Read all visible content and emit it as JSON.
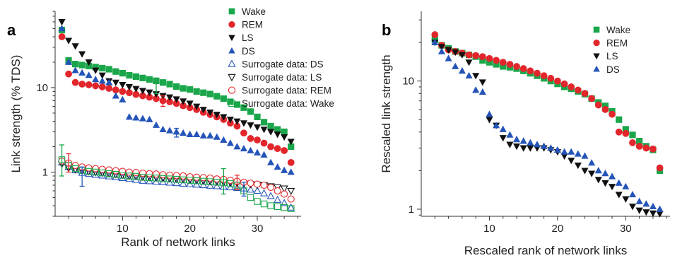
{
  "colors": {
    "wake": "#1aa64a",
    "rem": "#e2262b",
    "ls": "#111111",
    "ds": "#2454b8"
  },
  "chart_data": [
    {
      "panel_label": "a",
      "type": "scatter",
      "xlabel": "Rank of network links",
      "ylabel": "Link strength (% TDS)",
      "xscale": "linear",
      "yscale": "log",
      "xlim": [
        0,
        36.5
      ],
      "ylim": [
        0.3,
        80
      ],
      "xticks": [
        10,
        20,
        30
      ],
      "yticks": [
        {
          "value": 1,
          "label": "1"
        },
        {
          "value": 10,
          "label": "10"
        }
      ],
      "legend_position": "top-right",
      "series": [
        {
          "name": "Wake",
          "key": "wake",
          "marker": "square",
          "filled": true,
          "x": [
            1,
            2,
            3,
            4,
            5,
            6,
            7,
            8,
            9,
            10,
            11,
            12,
            13,
            14,
            15,
            16,
            17,
            18,
            19,
            20,
            21,
            22,
            23,
            24,
            25,
            26,
            27,
            28,
            29,
            30,
            31,
            32,
            33,
            34,
            35
          ],
          "y": [
            48,
            21,
            19,
            18.5,
            18,
            17.5,
            17,
            16.5,
            15.5,
            14.8,
            14,
            13.5,
            13,
            12.5,
            12,
            11.5,
            11,
            10.3,
            9.8,
            9.5,
            9,
            8.7,
            8.4,
            7.9,
            7.4,
            6.8,
            6.3,
            5.8,
            5.2,
            4.5,
            3.9,
            3.5,
            3.2,
            3.0,
            2.0
          ]
        },
        {
          "name": "REM",
          "key": "rem",
          "marker": "circle",
          "filled": true,
          "x": [
            1,
            2,
            3,
            4,
            5,
            6,
            7,
            8,
            9,
            10,
            11,
            12,
            13,
            14,
            15,
            16,
            17,
            18,
            19,
            20,
            21,
            22,
            23,
            24,
            25,
            26,
            27,
            28,
            29,
            30,
            31,
            32,
            33,
            34,
            35
          ],
          "y": [
            40,
            14.5,
            11.5,
            11,
            10.8,
            10.5,
            10.2,
            9.8,
            9.4,
            9.0,
            8.7,
            8.3,
            8.0,
            7.7,
            7.4,
            7.0,
            6.8,
            6.5,
            6.1,
            5.8,
            5.5,
            5.1,
            4.8,
            4.5,
            4.2,
            3.8,
            3.5,
            2.9,
            2.5,
            2.4,
            2.2,
            2.0,
            1.9,
            1.8,
            1.3
          ]
        },
        {
          "name": "LS",
          "key": "ls",
          "marker": "triangle-down",
          "filled": true,
          "x": [
            1,
            2,
            3,
            4,
            5,
            6,
            7,
            8,
            9,
            10,
            11,
            12,
            13,
            14,
            15,
            16,
            17,
            18,
            19,
            20,
            21,
            22,
            23,
            24,
            25,
            26,
            27,
            28,
            29,
            30,
            31,
            32,
            33,
            34,
            35
          ],
          "y": [
            60,
            36,
            31,
            25,
            20,
            16,
            14,
            12,
            11.5,
            10.8,
            10.2,
            9.7,
            9.2,
            8.8,
            8.4,
            8.0,
            7.7,
            7.3,
            6.9,
            6.5,
            6.0,
            5.5,
            5.1,
            4.8,
            4.5,
            4.2,
            4.0,
            3.8,
            3.6,
            3.4,
            3.2,
            3.0,
            2.8,
            2.6,
            2.3
          ]
        },
        {
          "name": "DS",
          "key": "ds",
          "marker": "triangle-up",
          "filled": true,
          "x": [
            1,
            2,
            3,
            4,
            5,
            6,
            7,
            8,
            9,
            10,
            11,
            12,
            13,
            14,
            15,
            16,
            17,
            18,
            19,
            20,
            21,
            22,
            23,
            24,
            25,
            26,
            27,
            28,
            29,
            30,
            31,
            32,
            33,
            34,
            35
          ],
          "y": [
            50,
            20,
            16,
            15,
            14,
            12.5,
            12,
            11.5,
            8,
            7.2,
            4.5,
            4.4,
            4.3,
            4.2,
            3.6,
            3.2,
            3.1,
            3.0,
            2.9,
            2.8,
            2.8,
            2.7,
            2.7,
            2.6,
            2.4,
            2.2,
            2.0,
            1.9,
            1.8,
            1.7,
            1.6,
            1.3,
            1.15,
            1.05,
            1.0
          ]
        },
        {
          "name": "Surrogate data: DS",
          "key": "ds",
          "marker": "triangle-up",
          "filled": false,
          "x": [
            1,
            2,
            3,
            4,
            5,
            6,
            7,
            8,
            9,
            10,
            11,
            12,
            13,
            14,
            15,
            16,
            17,
            18,
            19,
            20,
            21,
            22,
            23,
            24,
            25,
            26,
            27,
            28,
            29,
            30,
            31,
            32,
            33,
            34,
            35
          ],
          "y": [
            1.3,
            1.15,
            1.05,
            0.98,
            0.95,
            0.93,
            0.91,
            0.89,
            0.87,
            0.85,
            0.83,
            0.81,
            0.79,
            0.78,
            0.77,
            0.76,
            0.75,
            0.74,
            0.73,
            0.72,
            0.71,
            0.7,
            0.69,
            0.68,
            0.67,
            0.66,
            0.65,
            0.64,
            0.62,
            0.6,
            0.56,
            0.52,
            0.47,
            0.43,
            0.38
          ]
        },
        {
          "name": "Surrogate data: LS",
          "key": "ls",
          "marker": "triangle-down",
          "filled": false,
          "x": [
            1,
            2,
            3,
            4,
            5,
            6,
            7,
            8,
            9,
            10,
            11,
            12,
            13,
            14,
            15,
            16,
            17,
            18,
            19,
            20,
            21,
            22,
            23,
            24,
            25,
            26,
            27,
            28,
            29,
            30,
            31,
            32,
            33,
            34,
            35
          ],
          "y": [
            1.25,
            1.12,
            1.08,
            1.05,
            1.02,
            1.0,
            0.98,
            0.96,
            0.94,
            0.92,
            0.9,
            0.89,
            0.88,
            0.87,
            0.86,
            0.85,
            0.84,
            0.83,
            0.82,
            0.81,
            0.8,
            0.79,
            0.78,
            0.77,
            0.76,
            0.75,
            0.74,
            0.73,
            0.72,
            0.71,
            0.7,
            0.68,
            0.66,
            0.64,
            0.6
          ]
        },
        {
          "name": "Surrogate data: REM",
          "key": "rem",
          "marker": "circle",
          "filled": false,
          "x": [
            1,
            2,
            3,
            4,
            5,
            6,
            7,
            8,
            9,
            10,
            11,
            12,
            13,
            14,
            15,
            16,
            17,
            18,
            19,
            20,
            21,
            22,
            23,
            24,
            25,
            26,
            27,
            28,
            29,
            30,
            31,
            32,
            33,
            34,
            35
          ],
          "y": [
            1.35,
            1.28,
            1.2,
            1.15,
            1.12,
            1.1,
            1.08,
            1.06,
            1.04,
            1.02,
            1.0,
            0.99,
            0.97,
            0.96,
            0.95,
            0.93,
            0.92,
            0.91,
            0.9,
            0.88,
            0.87,
            0.86,
            0.85,
            0.83,
            0.82,
            0.8,
            0.78,
            0.76,
            0.74,
            0.72,
            0.7,
            0.66,
            0.6,
            0.55,
            0.48
          ]
        },
        {
          "name": "Surrogate data: Wake",
          "key": "wake",
          "marker": "square",
          "filled": false,
          "x": [
            1,
            2,
            3,
            4,
            5,
            6,
            7,
            8,
            9,
            10,
            11,
            12,
            13,
            14,
            15,
            16,
            17,
            18,
            19,
            20,
            21,
            22,
            23,
            24,
            25,
            26,
            27,
            28,
            29,
            30,
            31,
            32,
            33,
            34,
            35
          ],
          "y": [
            1.4,
            1.2,
            1.1,
            1.05,
            1.02,
            1.0,
            0.98,
            0.96,
            0.94,
            0.92,
            0.9,
            0.89,
            0.87,
            0.86,
            0.85,
            0.84,
            0.83,
            0.82,
            0.81,
            0.8,
            0.79,
            0.78,
            0.77,
            0.76,
            0.75,
            0.73,
            0.7,
            0.6,
            0.5,
            0.45,
            0.42,
            0.4,
            0.39,
            0.38,
            0.37
          ]
        }
      ],
      "errorbars": [
        {
          "key": "wake",
          "x": 1,
          "y": 1.4,
          "low": 0.9,
          "high": 2.1
        },
        {
          "key": "rem",
          "x": 2,
          "y": 1.28,
          "low": 1.0,
          "high": 1.65
        },
        {
          "key": "ds",
          "x": 4,
          "y": 0.98,
          "low": 0.68,
          "high": 1.15
        },
        {
          "key": "wake",
          "x": 15,
          "y": 10.5,
          "low": 8.5,
          "high": 13
        },
        {
          "key": "rem",
          "x": 16,
          "y": 7.0,
          "low": 6.0,
          "high": 8.0
        },
        {
          "key": "ds",
          "x": 18,
          "y": 3.0,
          "low": 2.6,
          "high": 3.3
        },
        {
          "key": "wake",
          "x": 25,
          "y": 0.75,
          "low": 0.55,
          "high": 1.1
        },
        {
          "key": "rem",
          "x": 27,
          "y": 0.78,
          "low": 0.62,
          "high": 0.92
        },
        {
          "key": "ds",
          "x": 28,
          "y": 0.64,
          "low": 0.52,
          "high": 0.76
        }
      ]
    },
    {
      "panel_label": "b",
      "type": "scatter",
      "xlabel": "Rescaled rank of network links",
      "ylabel": "Rescaled link strength",
      "xscale": "linear",
      "yscale": "log",
      "xlim": [
        0,
        36.5
      ],
      "ylim": [
        0.88,
        35
      ],
      "xticks": [
        10,
        20,
        30
      ],
      "yticks": [
        {
          "value": 1,
          "label": "1"
        },
        {
          "value": 10,
          "label": "10"
        }
      ],
      "legend_position": "top-right",
      "series": [
        {
          "name": "Wake",
          "key": "wake",
          "marker": "square",
          "filled": true,
          "x": [
            2,
            3,
            4,
            5,
            6,
            7,
            8,
            9,
            10,
            11,
            12,
            13,
            14,
            15,
            16,
            17,
            18,
            19,
            20,
            21,
            22,
            23,
            24,
            25,
            26,
            27,
            28,
            29,
            30,
            31,
            32,
            33,
            34,
            35
          ],
          "y": [
            21,
            19,
            18,
            17,
            16.5,
            16,
            15.5,
            14.5,
            14,
            13.5,
            13,
            12.8,
            12.5,
            12,
            11.5,
            11,
            10.5,
            10,
            9.5,
            9,
            8.7,
            8.3,
            7.9,
            7.3,
            6.8,
            6.4,
            5.8,
            5.0,
            4.2,
            3.8,
            3.4,
            3.1,
            2.9,
            2.0
          ]
        },
        {
          "name": "REM",
          "key": "rem",
          "marker": "circle",
          "filled": true,
          "x": [
            2,
            3,
            4,
            5,
            6,
            7,
            8,
            9,
            10,
            11,
            12,
            13,
            14,
            15,
            16,
            17,
            18,
            19,
            20,
            21,
            22,
            23,
            24,
            25,
            26,
            27,
            28,
            29,
            30,
            31,
            32,
            33,
            34,
            35
          ],
          "y": [
            23,
            19,
            17.5,
            17,
            16.5,
            16,
            15.8,
            15.5,
            15,
            14.5,
            14,
            13.5,
            13,
            12.5,
            12,
            11.5,
            11,
            10.5,
            10,
            9.5,
            9,
            8.5,
            8,
            7.3,
            6.5,
            6.0,
            5.5,
            4.0,
            3.9,
            3.3,
            3.1,
            3.0,
            2.95,
            2.1
          ]
        },
        {
          "name": "LS",
          "key": "ls",
          "marker": "triangle-down",
          "filled": true,
          "x": [
            2,
            3,
            4,
            5,
            6,
            7,
            8,
            9,
            10,
            11,
            12,
            13,
            14,
            15,
            16,
            17,
            18,
            19,
            20,
            21,
            22,
            23,
            24,
            25,
            26,
            27,
            28,
            29,
            30,
            31,
            32,
            33,
            34,
            35
          ],
          "y": [
            20,
            18.5,
            17.5,
            16.8,
            16,
            14,
            11,
            9.8,
            5.0,
            4.5,
            3.6,
            3.2,
            3.1,
            3.0,
            3.0,
            3.0,
            3.0,
            2.9,
            2.8,
            2.6,
            2.4,
            2.2,
            2.0,
            1.9,
            1.7,
            1.6,
            1.5,
            1.3,
            1.2,
            1.05,
            0.98,
            0.95,
            0.93,
            0.92
          ]
        },
        {
          "name": "DS",
          "key": "ds",
          "marker": "triangle-up",
          "filled": true,
          "x": [
            2,
            3,
            4,
            5,
            6,
            7,
            8,
            9,
            10,
            11,
            12,
            13,
            14,
            15,
            16,
            17,
            18,
            19,
            20,
            21,
            22,
            23,
            24,
            25,
            26,
            27,
            28,
            29,
            30,
            31,
            32,
            33,
            34,
            35
          ],
          "y": [
            20,
            17,
            15,
            13,
            12,
            11,
            8.5,
            8.2,
            5.5,
            4.5,
            4.2,
            3.8,
            3.5,
            3.4,
            3.3,
            3.2,
            3.1,
            3.0,
            2.9,
            2.8,
            2.8,
            2.7,
            2.6,
            2.3,
            2.0,
            1.9,
            1.8,
            1.6,
            1.5,
            1.3,
            1.15,
            1.1,
            1.05,
            1.0
          ]
        }
      ],
      "errorbars": []
    }
  ]
}
